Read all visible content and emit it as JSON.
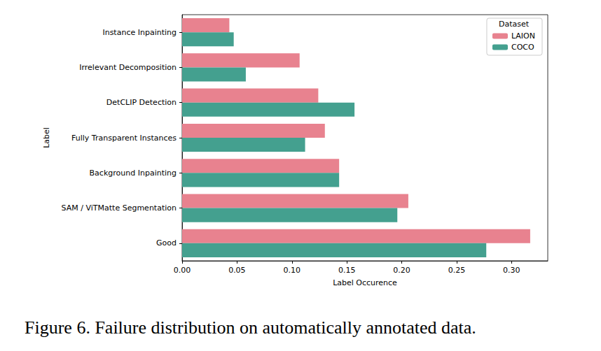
{
  "chart_data": {
    "type": "bar",
    "orientation": "horizontal",
    "title": "Figure 6. Failure distribution on automatically annotated data.",
    "x_label": "Label Occurence",
    "y_label": "Label",
    "legend_title": "Dataset",
    "legend": "upper right",
    "grid": false,
    "categories": [
      "Instance Inpainting",
      "Irrelevant Decomposition",
      "DetCLIP Detection",
      "Fully Transparent Instances",
      "Background Inpainting",
      "SAM / ViTMatte Segmentation",
      "Good"
    ],
    "series": [
      {
        "name": "LAION",
        "color": "#e8828f",
        "values": [
          0.043,
          0.107,
          0.124,
          0.13,
          0.143,
          0.206,
          0.317
        ]
      },
      {
        "name": "COCO",
        "color": "#44a08f",
        "values": [
          0.047,
          0.058,
          0.157,
          0.112,
          0.143,
          0.196,
          0.277
        ]
      }
    ],
    "xlim": [
      0,
      0.333
    ],
    "xticks": [
      {
        "value": 0,
        "label": "0.00"
      },
      0.05,
      {
        "value": 0.1,
        "label": "0.10"
      },
      0.15,
      {
        "value": 0.2,
        "label": "0.20"
      },
      0.25,
      {
        "value": 0.3,
        "label": "0.30"
      }
    ]
  }
}
